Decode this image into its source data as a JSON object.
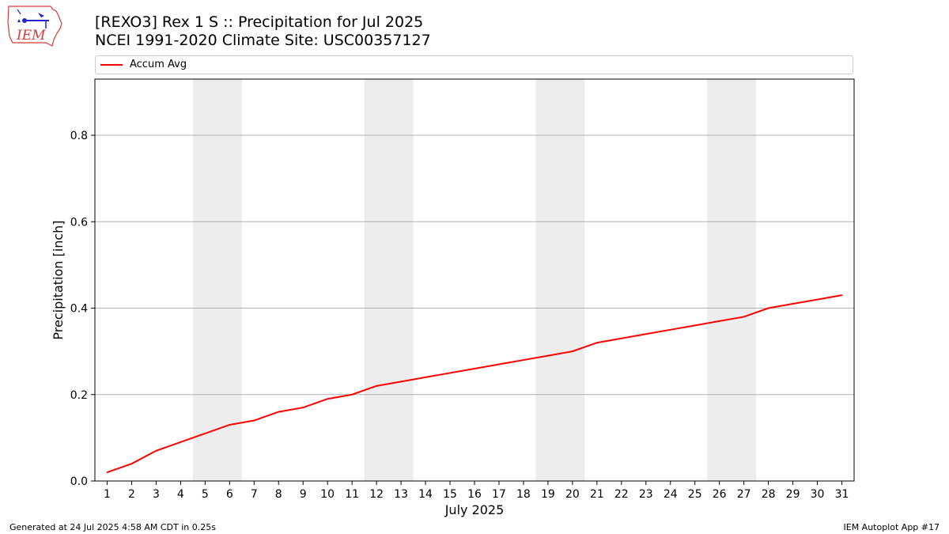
{
  "header": {
    "title_line1": "[REXO3] Rex 1 S :: Precipitation for Jul 2025",
    "title_line2": "NCEI 1991-2020 Climate Site: USC00357127"
  },
  "logo": {
    "text": "IEM",
    "icon": "iem-logo-icon"
  },
  "footer": {
    "generated": "Generated at 24 Jul 2025 4:58 AM CDT in 0.25s",
    "app": "IEM Autoplot App #17"
  },
  "colors": {
    "line": "#ff0000",
    "weekend": "#ededed",
    "grid": "#b0b0b0"
  },
  "chart_data": {
    "type": "line",
    "xlabel": "July 2025",
    "ylabel": "Precipitation [inch]",
    "xlim": [
      0.5,
      31.5
    ],
    "ylim": [
      0,
      0.93
    ],
    "yticks": [
      0.0,
      0.2,
      0.4,
      0.6,
      0.8
    ],
    "ytick_labels": [
      "0.0",
      "0.2",
      "0.4",
      "0.6",
      "0.8"
    ],
    "grid": "horizontal",
    "legend": "top",
    "x": [
      1,
      2,
      3,
      4,
      5,
      6,
      7,
      8,
      9,
      10,
      11,
      12,
      13,
      14,
      15,
      16,
      17,
      18,
      19,
      20,
      21,
      22,
      23,
      24,
      25,
      26,
      27,
      28,
      29,
      30,
      31
    ],
    "series": [
      {
        "name": "Accum Avg",
        "values": [
          0.02,
          0.04,
          0.07,
          0.09,
          0.11,
          0.13,
          0.14,
          0.16,
          0.17,
          0.19,
          0.2,
          0.22,
          0.23,
          0.24,
          0.25,
          0.26,
          0.27,
          0.28,
          0.29,
          0.3,
          0.32,
          0.33,
          0.34,
          0.35,
          0.36,
          0.37,
          0.38,
          0.4,
          0.41,
          0.42,
          0.43
        ]
      }
    ],
    "shaded_weekends": [
      [
        5,
        6
      ],
      [
        12,
        13
      ],
      [
        19,
        20
      ],
      [
        26,
        27
      ]
    ]
  }
}
